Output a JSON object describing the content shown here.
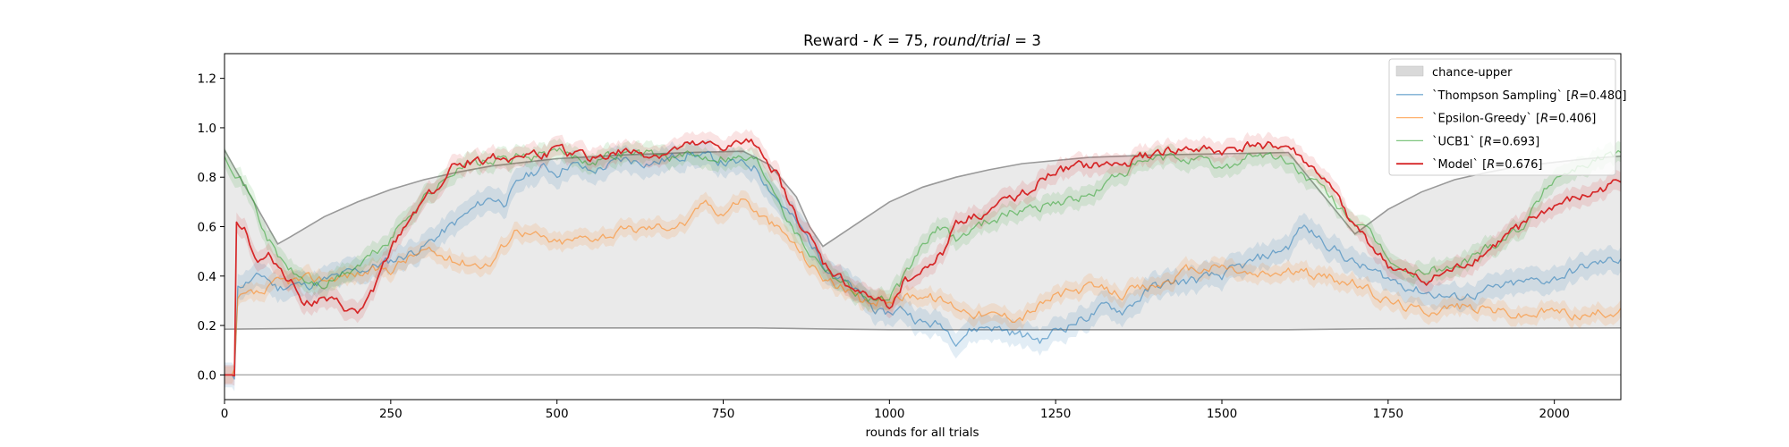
{
  "chart_data": {
    "type": "line",
    "title": "Reward - K = 75, round/trial = 3",
    "title_parts": {
      "prefix": "Reward - ",
      "k_symbol": "K",
      "k_value": " = 75, ",
      "rt_symbol": "round/trial",
      "rt_value": " = 3"
    },
    "xlabel": "rounds for all trials",
    "ylabel": "",
    "xlim": [
      0,
      2100
    ],
    "ylim": [
      -0.1,
      1.3
    ],
    "xticks": [
      0,
      250,
      500,
      750,
      1000,
      1250,
      1500,
      1750,
      2000
    ],
    "yticks": [
      0.0,
      0.2,
      0.4,
      0.6,
      0.8,
      1.0,
      1.2
    ],
    "legend_position": "top-right",
    "colors": {
      "thompson": "#1f77b4",
      "epsilon": "#ff7f0e",
      "ucb1": "#2ca02c",
      "model": "#d62728",
      "chance": "#999999",
      "chance_fill": "#d9d9d9"
    },
    "chance_band": {
      "name": "chance-upper",
      "lower": [
        [
          0,
          0.185
        ],
        [
          200,
          0.19
        ],
        [
          400,
          0.19
        ],
        [
          600,
          0.19
        ],
        [
          800,
          0.19
        ],
        [
          900,
          0.186
        ],
        [
          1000,
          0.183
        ],
        [
          1200,
          0.183
        ],
        [
          1400,
          0.183
        ],
        [
          1600,
          0.183
        ],
        [
          1700,
          0.186
        ],
        [
          1800,
          0.188
        ],
        [
          2100,
          0.19
        ]
      ],
      "upper": [
        [
          0,
          0.91
        ],
        [
          80,
          0.53
        ],
        [
          100,
          0.56
        ],
        [
          150,
          0.64
        ],
        [
          200,
          0.7
        ],
        [
          250,
          0.75
        ],
        [
          300,
          0.79
        ],
        [
          350,
          0.82
        ],
        [
          400,
          0.845
        ],
        [
          450,
          0.86
        ],
        [
          500,
          0.875
        ],
        [
          600,
          0.89
        ],
        [
          700,
          0.9
        ],
        [
          780,
          0.905
        ],
        [
          820,
          0.85
        ],
        [
          860,
          0.72
        ],
        [
          880,
          0.6
        ],
        [
          900,
          0.52
        ],
        [
          950,
          0.61
        ],
        [
          1000,
          0.7
        ],
        [
          1050,
          0.76
        ],
        [
          1100,
          0.8
        ],
        [
          1150,
          0.83
        ],
        [
          1200,
          0.855
        ],
        [
          1300,
          0.88
        ],
        [
          1400,
          0.89
        ],
        [
          1500,
          0.895
        ],
        [
          1600,
          0.9
        ],
        [
          1700,
          0.57
        ],
        [
          1750,
          0.67
        ],
        [
          1800,
          0.74
        ],
        [
          1850,
          0.79
        ],
        [
          1900,
          0.82
        ],
        [
          1950,
          0.845
        ],
        [
          2000,
          0.86
        ],
        [
          2050,
          0.875
        ],
        [
          2100,
          0.885
        ]
      ]
    },
    "series": [
      {
        "key": "thompson",
        "name": "`Thompson Sampling` [R=0.480]",
        "legend_parts": [
          "`Thompson Sampling` [",
          "R",
          "=0.480]"
        ],
        "band": 0.05,
        "points": [
          [
            0,
            0.0
          ],
          [
            15,
            0.0
          ],
          [
            20,
            0.36
          ],
          [
            40,
            0.38
          ],
          [
            60,
            0.4
          ],
          [
            80,
            0.35
          ],
          [
            100,
            0.37
          ],
          [
            120,
            0.36
          ],
          [
            150,
            0.38
          ],
          [
            200,
            0.42
          ],
          [
            250,
            0.46
          ],
          [
            300,
            0.52
          ],
          [
            350,
            0.62
          ],
          [
            400,
            0.72
          ],
          [
            420,
            0.7
          ],
          [
            450,
            0.8
          ],
          [
            480,
            0.84
          ],
          [
            500,
            0.82
          ],
          [
            520,
            0.86
          ],
          [
            550,
            0.82
          ],
          [
            600,
            0.87
          ],
          [
            650,
            0.86
          ],
          [
            700,
            0.9
          ],
          [
            750,
            0.86
          ],
          [
            800,
            0.84
          ],
          [
            830,
            0.72
          ],
          [
            850,
            0.65
          ],
          [
            880,
            0.54
          ],
          [
            900,
            0.46
          ],
          [
            930,
            0.38
          ],
          [
            960,
            0.31
          ],
          [
            990,
            0.24
          ],
          [
            1020,
            0.27
          ],
          [
            1050,
            0.21
          ],
          [
            1080,
            0.2
          ],
          [
            1100,
            0.15
          ],
          [
            1120,
            0.18
          ],
          [
            1150,
            0.2
          ],
          [
            1200,
            0.16
          ],
          [
            1230,
            0.14
          ],
          [
            1250,
            0.18
          ],
          [
            1300,
            0.24
          ],
          [
            1330,
            0.28
          ],
          [
            1350,
            0.26
          ],
          [
            1400,
            0.36
          ],
          [
            1450,
            0.38
          ],
          [
            1500,
            0.4
          ],
          [
            1550,
            0.46
          ],
          [
            1600,
            0.52
          ],
          [
            1620,
            0.6
          ],
          [
            1650,
            0.55
          ],
          [
            1700,
            0.45
          ],
          [
            1750,
            0.39
          ],
          [
            1780,
            0.36
          ],
          [
            1800,
            0.34
          ],
          [
            1850,
            0.31
          ],
          [
            1900,
            0.34
          ],
          [
            1950,
            0.37
          ],
          [
            2000,
            0.39
          ],
          [
            2050,
            0.44
          ],
          [
            2100,
            0.47
          ]
        ]
      },
      {
        "key": "epsilon",
        "name": "`Epsilon-Greedy` [R=0.406]",
        "legend_parts": [
          "`Epsilon-Greedy` [",
          "R",
          "=0.406]"
        ],
        "band": 0.035,
        "points": [
          [
            0,
            0.0
          ],
          [
            15,
            0.0
          ],
          [
            20,
            0.3
          ],
          [
            40,
            0.32
          ],
          [
            60,
            0.33
          ],
          [
            80,
            0.37
          ],
          [
            100,
            0.38
          ],
          [
            150,
            0.39
          ],
          [
            200,
            0.41
          ],
          [
            250,
            0.43
          ],
          [
            280,
            0.48
          ],
          [
            300,
            0.5
          ],
          [
            350,
            0.46
          ],
          [
            400,
            0.45
          ],
          [
            440,
            0.6
          ],
          [
            460,
            0.57
          ],
          [
            500,
            0.53
          ],
          [
            550,
            0.56
          ],
          [
            600,
            0.58
          ],
          [
            650,
            0.6
          ],
          [
            700,
            0.62
          ],
          [
            720,
            0.7
          ],
          [
            750,
            0.66
          ],
          [
            780,
            0.72
          ],
          [
            800,
            0.66
          ],
          [
            850,
            0.55
          ],
          [
            880,
            0.45
          ],
          [
            900,
            0.4
          ],
          [
            930,
            0.35
          ],
          [
            960,
            0.28
          ],
          [
            1000,
            0.31
          ],
          [
            1050,
            0.33
          ],
          [
            1100,
            0.28
          ],
          [
            1150,
            0.24
          ],
          [
            1200,
            0.24
          ],
          [
            1250,
            0.32
          ],
          [
            1300,
            0.35
          ],
          [
            1350,
            0.33
          ],
          [
            1400,
            0.36
          ],
          [
            1450,
            0.42
          ],
          [
            1500,
            0.44
          ],
          [
            1550,
            0.4
          ],
          [
            1600,
            0.42
          ],
          [
            1650,
            0.4
          ],
          [
            1700,
            0.37
          ],
          [
            1750,
            0.3
          ],
          [
            1800,
            0.26
          ],
          [
            1850,
            0.28
          ],
          [
            1900,
            0.27
          ],
          [
            1950,
            0.24
          ],
          [
            2000,
            0.26
          ],
          [
            2050,
            0.24
          ],
          [
            2100,
            0.27
          ]
        ]
      },
      {
        "key": "ucb1",
        "name": "`UCB1` [R=0.693]",
        "legend_parts": [
          "`UCB1` [",
          "R",
          "=0.693]"
        ],
        "band": 0.04,
        "points": [
          [
            0,
            0.9
          ],
          [
            20,
            0.82
          ],
          [
            40,
            0.72
          ],
          [
            60,
            0.58
          ],
          [
            80,
            0.48
          ],
          [
            100,
            0.42
          ],
          [
            120,
            0.38
          ],
          [
            150,
            0.36
          ],
          [
            200,
            0.44
          ],
          [
            230,
            0.5
          ],
          [
            250,
            0.55
          ],
          [
            280,
            0.66
          ],
          [
            300,
            0.72
          ],
          [
            330,
            0.78
          ],
          [
            350,
            0.85
          ],
          [
            400,
            0.86
          ],
          [
            450,
            0.88
          ],
          [
            500,
            0.9
          ],
          [
            550,
            0.87
          ],
          [
            600,
            0.9
          ],
          [
            650,
            0.89
          ],
          [
            700,
            0.88
          ],
          [
            750,
            0.89
          ],
          [
            800,
            0.87
          ],
          [
            830,
            0.75
          ],
          [
            850,
            0.62
          ],
          [
            880,
            0.5
          ],
          [
            900,
            0.45
          ],
          [
            930,
            0.38
          ],
          [
            960,
            0.32
          ],
          [
            1000,
            0.3
          ],
          [
            1030,
            0.42
          ],
          [
            1050,
            0.53
          ],
          [
            1080,
            0.6
          ],
          [
            1100,
            0.55
          ],
          [
            1150,
            0.63
          ],
          [
            1200,
            0.67
          ],
          [
            1250,
            0.7
          ],
          [
            1300,
            0.72
          ],
          [
            1350,
            0.82
          ],
          [
            1400,
            0.87
          ],
          [
            1450,
            0.88
          ],
          [
            1500,
            0.83
          ],
          [
            1550,
            0.9
          ],
          [
            1600,
            0.86
          ],
          [
            1650,
            0.75
          ],
          [
            1700,
            0.62
          ],
          [
            1750,
            0.48
          ],
          [
            1780,
            0.4
          ],
          [
            1800,
            0.42
          ],
          [
            1850,
            0.43
          ],
          [
            1900,
            0.52
          ],
          [
            1950,
            0.6
          ],
          [
            2000,
            0.8
          ],
          [
            2050,
            0.86
          ],
          [
            2100,
            0.9
          ]
        ]
      },
      {
        "key": "model",
        "name": "`Model` [R=0.676]",
        "legend_parts": [
          "`Model` [",
          "R",
          "=0.676]"
        ],
        "band": 0.04,
        "points": [
          [
            0,
            0.0
          ],
          [
            15,
            0.0
          ],
          [
            18,
            0.63
          ],
          [
            30,
            0.6
          ],
          [
            50,
            0.45
          ],
          [
            70,
            0.48
          ],
          [
            100,
            0.38
          ],
          [
            120,
            0.3
          ],
          [
            150,
            0.3
          ],
          [
            180,
            0.27
          ],
          [
            200,
            0.24
          ],
          [
            220,
            0.32
          ],
          [
            250,
            0.5
          ],
          [
            280,
            0.64
          ],
          [
            300,
            0.72
          ],
          [
            330,
            0.78
          ],
          [
            350,
            0.86
          ],
          [
            400,
            0.88
          ],
          [
            450,
            0.89
          ],
          [
            500,
            0.9
          ],
          [
            550,
            0.88
          ],
          [
            600,
            0.9
          ],
          [
            650,
            0.89
          ],
          [
            700,
            0.92
          ],
          [
            750,
            0.92
          ],
          [
            800,
            0.94
          ],
          [
            830,
            0.82
          ],
          [
            850,
            0.68
          ],
          [
            880,
            0.55
          ],
          [
            900,
            0.45
          ],
          [
            930,
            0.38
          ],
          [
            960,
            0.32
          ],
          [
            1000,
            0.28
          ],
          [
            1020,
            0.38
          ],
          [
            1050,
            0.42
          ],
          [
            1080,
            0.5
          ],
          [
            1100,
            0.62
          ],
          [
            1150,
            0.66
          ],
          [
            1200,
            0.74
          ],
          [
            1250,
            0.82
          ],
          [
            1300,
            0.84
          ],
          [
            1350,
            0.85
          ],
          [
            1400,
            0.9
          ],
          [
            1450,
            0.91
          ],
          [
            1500,
            0.9
          ],
          [
            1550,
            0.93
          ],
          [
            1600,
            0.92
          ],
          [
            1650,
            0.8
          ],
          [
            1700,
            0.6
          ],
          [
            1750,
            0.44
          ],
          [
            1780,
            0.4
          ],
          [
            1800,
            0.37
          ],
          [
            1850,
            0.42
          ],
          [
            1900,
            0.5
          ],
          [
            1950,
            0.6
          ],
          [
            2000,
            0.68
          ],
          [
            2050,
            0.72
          ],
          [
            2100,
            0.78
          ]
        ]
      }
    ]
  }
}
